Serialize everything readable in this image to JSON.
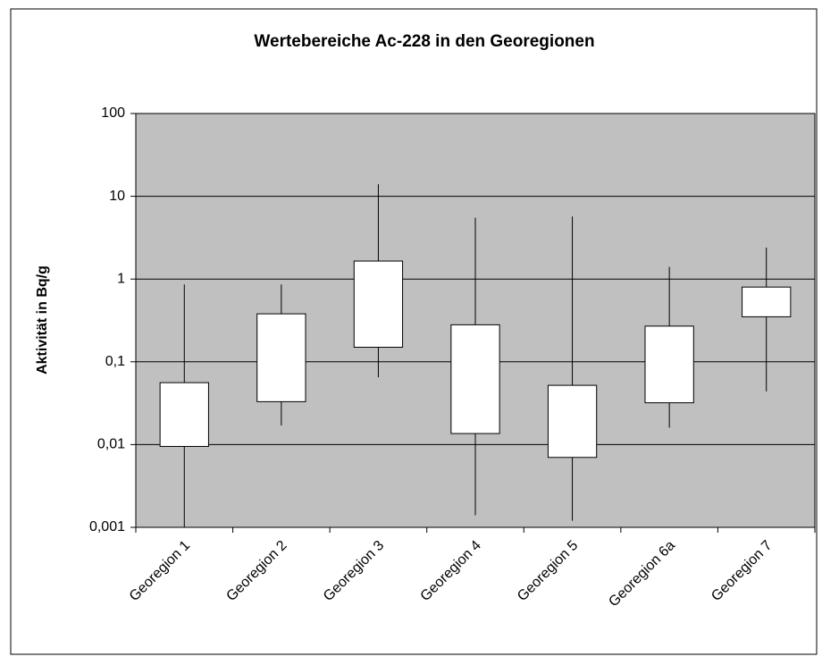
{
  "chart_data": {
    "type": "box",
    "title": "Wertebereiche Ac-228 in den Georegionen",
    "y_label": "Aktivität in Bq/g",
    "categories": [
      "Georegion 1",
      "Georegion 2",
      "Georegion 3",
      "Georegion 4",
      "Georegion 5",
      "Georegion 6a",
      "Georegion 7"
    ],
    "high": [
      0.86,
      0.86,
      14,
      5.5,
      5.7,
      1.4,
      2.4
    ],
    "box_high": [
      0.056,
      0.38,
      1.65,
      0.28,
      0.052,
      0.27,
      0.8
    ],
    "box_low": [
      0.0095,
      0.033,
      0.15,
      0.0136,
      0.007,
      0.032,
      0.35
    ],
    "low": [
      0.001,
      0.017,
      0.065,
      0.0014,
      0.0012,
      0.016,
      0.044
    ],
    "ylim": [
      0.001,
      100
    ],
    "yticks": [
      {
        "value": 0.001,
        "label": "0,001"
      },
      {
        "value": 0.01,
        "label": "0,01"
      },
      {
        "value": 0.1,
        "label": "0,1"
      },
      1,
      10,
      100
    ],
    "log_y": true,
    "grid": true,
    "plot_color": "#c0c0c0",
    "box_color": "#ffffff",
    "line_color": "#000000"
  }
}
